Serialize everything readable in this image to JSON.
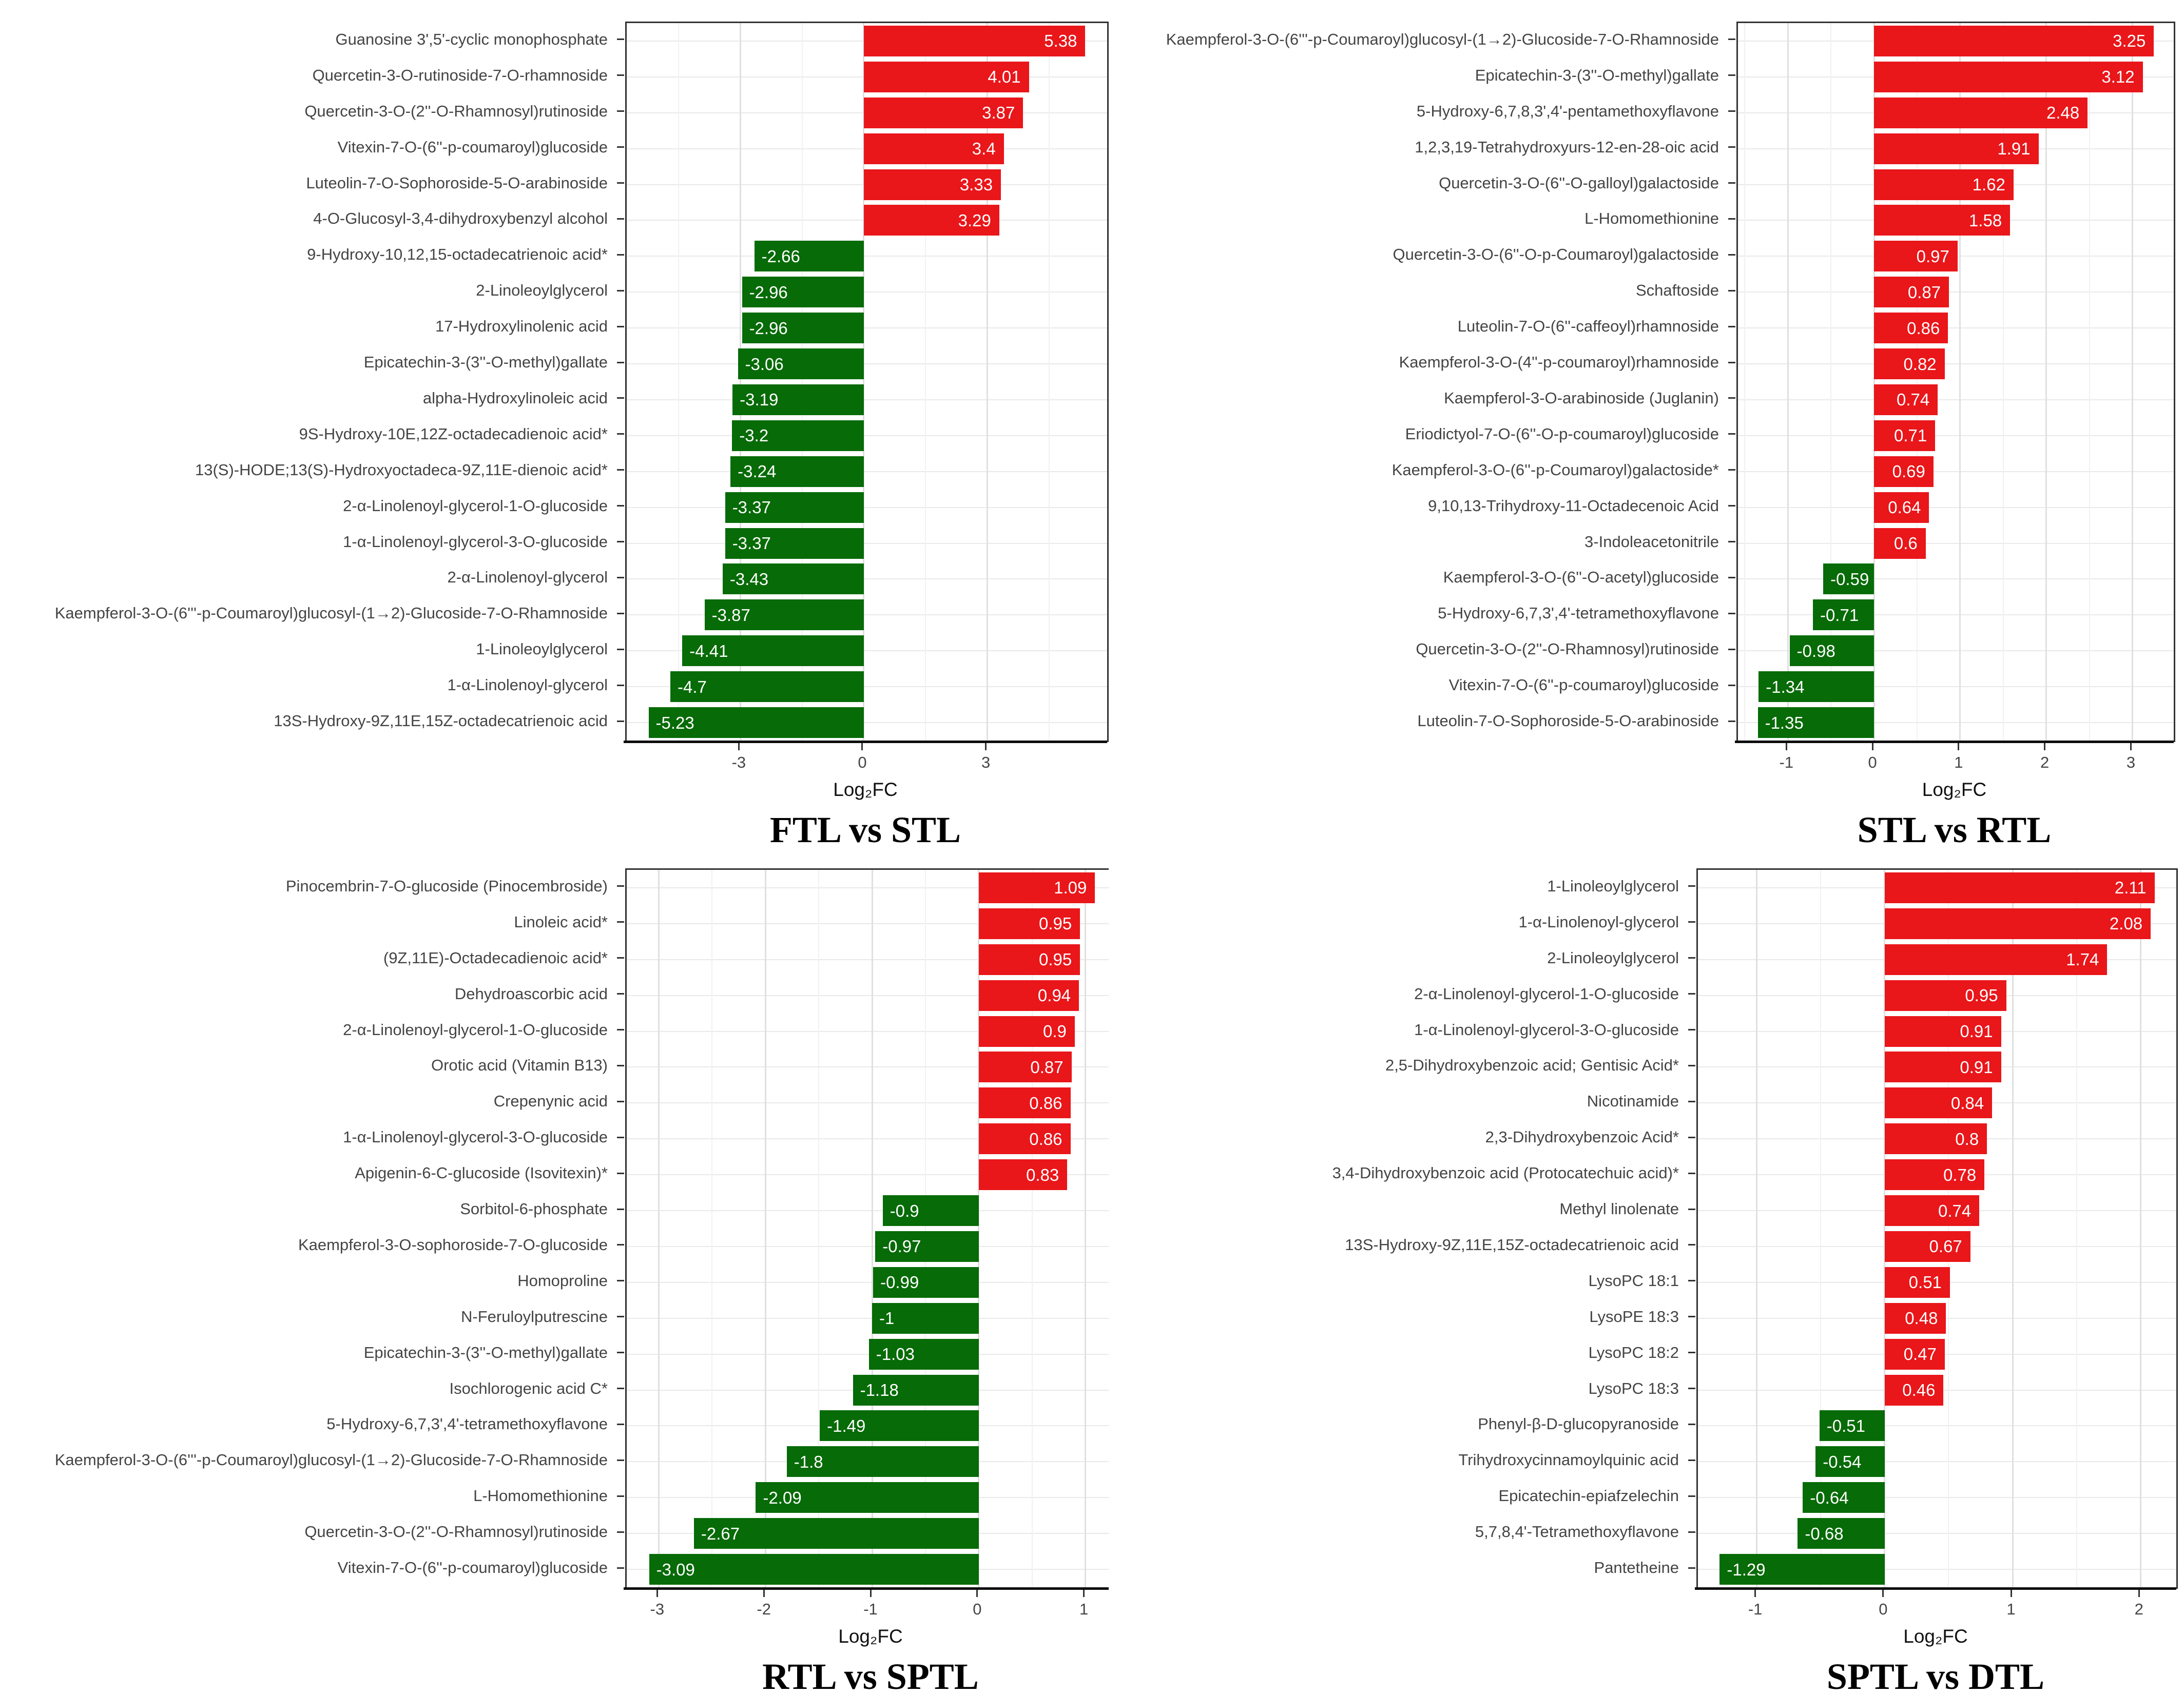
{
  "colors": {
    "positive_bar": "#e9161a",
    "negative_bar": "#076b07",
    "axis_text": "#444444",
    "grid_major": "#e0e0e0",
    "grid_minor": "#f1f1f1"
  },
  "chart_data": [
    {
      "type": "bar",
      "orientation": "horizontal",
      "title": "FTL vs STL",
      "xlabel": "Log₂FC",
      "xlim": [
        -5.76,
        5.91
      ],
      "xticks": [
        -3,
        0,
        3
      ],
      "grid": true,
      "legend": "none",
      "categories": [
        "Guanosine 3',5'-cyclic monophosphate",
        "Quercetin-3-O-rutinoside-7-O-rhamnoside",
        "Quercetin-3-O-(2''-O-Rhamnosyl)rutinoside",
        "Vitexin-7-O-(6''-p-coumaroyl)glucoside",
        "Luteolin-7-O-Sophoroside-5-O-arabinoside",
        "4-O-Glucosyl-3,4-dihydroxybenzyl alcohol",
        "9-Hydroxy-10,12,15-octadecatrienoic acid*",
        "2-Linoleoylglycerol",
        "17-Hydroxylinolenic acid",
        "Epicatechin-3-(3''-O-methyl)gallate",
        "alpha-Hydroxylinoleic acid",
        "9S-Hydroxy-10E,12Z-octadecadienoic acid*",
        "13(S)-HODE;13(S)-Hydroxyoctadeca-9Z,11E-dienoic acid*",
        "2-α-Linolenoyl-glycerol-1-O-glucoside",
        "1-α-Linolenoyl-glycerol-3-O-glucoside",
        "2-α-Linolenoyl-glycerol",
        "Kaempferol-3-O-(6'''-p-Coumaroyl)glucosyl-(1→2)-Glucoside-7-O-Rhamnoside",
        "1-Linoleoylglycerol",
        "1-α-Linolenoyl-glycerol",
        "13S-Hydroxy-9Z,11E,15Z-octadecatrienoic acid"
      ],
      "values": [
        5.38,
        4.01,
        3.87,
        3.4,
        3.33,
        3.29,
        -2.66,
        -2.96,
        -2.96,
        -3.06,
        -3.19,
        -3.2,
        -3.24,
        -3.37,
        -3.37,
        -3.43,
        -3.87,
        -4.41,
        -4.7,
        -5.23
      ]
    },
    {
      "type": "bar",
      "orientation": "horizontal",
      "title": "STL vs RTL",
      "xlabel": "Log₂FC",
      "xlim": [
        -1.58,
        3.48
      ],
      "xticks": [
        -1,
        0,
        1,
        2,
        3
      ],
      "grid": true,
      "legend": "none",
      "categories": [
        "Kaempferol-3-O-(6'''-p-Coumaroyl)glucosyl-(1→2)-Glucoside-7-O-Rhamnoside",
        "Epicatechin-3-(3''-O-methyl)gallate",
        "5-Hydroxy-6,7,8,3',4'-pentamethoxyflavone",
        "1,2,3,19-Tetrahydroxyurs-12-en-28-oic acid",
        "Quercetin-3-O-(6''-O-galloyl)galactoside",
        "L-Homomethionine",
        "Quercetin-3-O-(6''-O-p-Coumaroyl)galactoside",
        "Schaftoside",
        "Luteolin-7-O-(6''-caffeoyl)rhamnoside",
        "Kaempferol-3-O-(4''-p-coumaroyl)rhamnoside",
        "Kaempferol-3-O-arabinoside (Juglanin)",
        "Eriodictyol-7-O-(6''-O-p-coumaroyl)glucoside",
        "Kaempferol-3-O-(6''-p-Coumaroyl)galactoside*",
        "9,10,13-Trihydroxy-11-Octadecenoic Acid",
        "3-Indoleacetonitrile",
        "Kaempferol-3-O-(6''-O-acetyl)glucoside",
        "5-Hydroxy-6,7,3',4'-tetramethoxyflavone",
        "Quercetin-3-O-(2''-O-Rhamnosyl)rutinoside",
        "Vitexin-7-O-(6''-p-coumaroyl)glucoside",
        "Luteolin-7-O-Sophoroside-5-O-arabinoside"
      ],
      "values": [
        3.25,
        3.12,
        2.48,
        1.91,
        1.62,
        1.58,
        0.97,
        0.87,
        0.86,
        0.82,
        0.74,
        0.71,
        0.69,
        0.64,
        0.6,
        -0.59,
        -0.71,
        -0.98,
        -1.34,
        -1.35
      ]
    },
    {
      "type": "bar",
      "orientation": "horizontal",
      "title": "RTL vs SPTL",
      "xlabel": "Log₂FC",
      "xlim": [
        -3.3,
        1.3
      ],
      "xticks": [
        -3,
        -2,
        -1,
        0,
        1
      ],
      "grid": true,
      "legend": "none",
      "categories": [
        "Pinocembrin-7-O-glucoside (Pinocembroside)",
        "Linoleic acid*",
        "(9Z,11E)-Octadecadienoic acid*",
        "Dehydroascorbic acid",
        "2-α-Linolenoyl-glycerol-1-O-glucoside",
        "Orotic acid (Vitamin B13)",
        "Crepenynic acid",
        "1-α-Linolenoyl-glycerol-3-O-glucoside",
        "Apigenin-6-C-glucoside (Isovitexin)*",
        "Sorbitol-6-phosphate",
        "Kaempferol-3-O-sophoroside-7-O-glucoside",
        "Homoproline",
        "N-Feruloylputrescine",
        "Epicatechin-3-(3''-O-methyl)gallate",
        "Isochlorogenic acid C*",
        "5-Hydroxy-6,7,3',4'-tetramethoxyflavone",
        "Kaempferol-3-O-(6'''-p-Coumaroyl)glucosyl-(1→2)-Glucoside-7-O-Rhamnoside",
        "L-Homomethionine",
        "Quercetin-3-O-(2''-O-Rhamnosyl)rutinoside",
        "Vitexin-7-O-(6''-p-coumaroyl)glucoside"
      ],
      "values": [
        1.09,
        0.95,
        0.95,
        0.94,
        0.9,
        0.87,
        0.86,
        0.86,
        0.83,
        -0.9,
        -0.97,
        -0.99,
        -1,
        -1.03,
        -1.18,
        -1.49,
        -1.8,
        -2.09,
        -2.67,
        -3.09
      ]
    },
    {
      "type": "bar",
      "orientation": "horizontal",
      "title": "SPTL vs DTL",
      "xlabel": "Log₂FC",
      "xlim": [
        -1.46,
        2.28
      ],
      "xticks": [
        -1,
        0,
        1,
        2
      ],
      "grid": true,
      "legend": "none",
      "categories": [
        "1-Linoleoylglycerol",
        "1-α-Linolenoyl-glycerol",
        "2-Linoleoylglycerol",
        "2-α-Linolenoyl-glycerol-1-O-glucoside",
        "1-α-Linolenoyl-glycerol-3-O-glucoside",
        "2,5-Dihydroxybenzoic acid; Gentisic Acid*",
        "Nicotinamide",
        "2,3-Dihydroxybenzoic Acid*",
        "3,4-Dihydroxybenzoic acid (Protocatechuic acid)*",
        "Methyl linolenate",
        "13S-Hydroxy-9Z,11E,15Z-octadecatrienoic acid",
        "LysoPC 18:1",
        "LysoPE 18:3",
        "LysoPC 18:2",
        "LysoPC 18:3",
        "Phenyl-β-D-glucopyranoside",
        "Trihydroxycinnamoylquinic acid",
        "Epicatechin-epiafzelechin",
        "5,7,8,4'-Tetramethoxyflavone",
        "Pantetheine"
      ],
      "values": [
        2.11,
        2.08,
        1.74,
        0.95,
        0.91,
        0.91,
        0.84,
        0.8,
        0.78,
        0.74,
        0.67,
        0.51,
        0.48,
        0.47,
        0.46,
        -0.51,
        -0.54,
        -0.64,
        -0.68,
        -1.29
      ]
    }
  ]
}
